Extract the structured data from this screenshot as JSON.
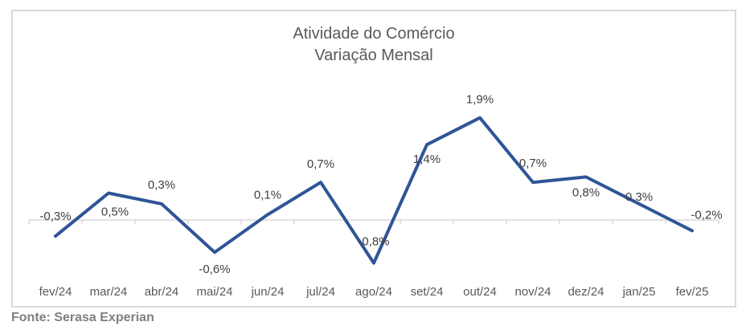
{
  "chart_data": {
    "type": "line",
    "title": "Atividade do Comércio",
    "subtitle": "Variação Mensal",
    "categories": [
      "fev/24",
      "mar/24",
      "abr/24",
      "mai/24",
      "jun/24",
      "jul/24",
      "ago/24",
      "set/24",
      "out/24",
      "nov/24",
      "dez/24",
      "jan/25",
      "fev/25"
    ],
    "series": [
      {
        "name": "Variação Mensal",
        "values": [
          -0.3,
          0.5,
          0.3,
          -0.6,
          0.1,
          0.7,
          -0.8,
          1.4,
          1.9,
          0.7,
          0.8,
          0.3,
          -0.2
        ],
        "color": "#2f5597"
      }
    ],
    "data_labels": [
      "-0,3%",
      "0,5%",
      "0,3%",
      "-0,6%",
      "0,1%",
      "0,7%",
      "-0,8%",
      "1,4%",
      "1,9%",
      "0,7%",
      "0,8%",
      "0,3%",
      "-0,2%"
    ],
    "xlabel": "",
    "ylabel": "",
    "ylim": [
      -1.5,
      2.2
    ],
    "grid": false,
    "legend": "none"
  },
  "source": "Fonte: Serasa Experian"
}
